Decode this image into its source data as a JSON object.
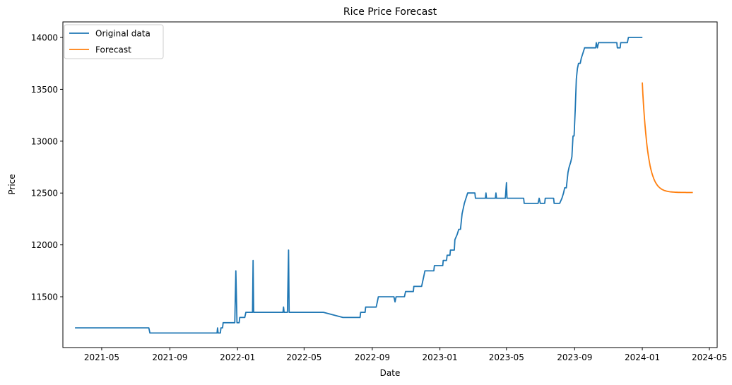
{
  "chart_data": {
    "type": "line",
    "title": "Rice Price Forecast",
    "xlabel": "Date",
    "ylabel": "Price",
    "x_axis_type": "date",
    "xlim": [
      "2021-02-20",
      "2024-05-15"
    ],
    "ylim": [
      11010,
      14150
    ],
    "x_ticks": [
      {
        "date": "2021-05-01",
        "label": "2021-05"
      },
      {
        "date": "2021-09-01",
        "label": "2021-09"
      },
      {
        "date": "2022-01-01",
        "label": "2022-01"
      },
      {
        "date": "2022-05-01",
        "label": "2022-05"
      },
      {
        "date": "2022-09-01",
        "label": "2022-09"
      },
      {
        "date": "2023-01-01",
        "label": "2023-01"
      },
      {
        "date": "2023-05-01",
        "label": "2023-05"
      },
      {
        "date": "2023-09-01",
        "label": "2023-09"
      },
      {
        "date": "2024-01-01",
        "label": "2024-01"
      },
      {
        "date": "2024-05-01",
        "label": "2024-05"
      }
    ],
    "y_ticks": [
      11500,
      12000,
      12500,
      13000,
      13500,
      14000
    ],
    "grid": false,
    "legend_position": "top-left",
    "series": [
      {
        "name": "Original data",
        "color": "#1f77b4",
        "points": [
          [
            "2021-03-15",
            11200
          ],
          [
            "2021-07-25",
            11200
          ],
          [
            "2021-07-27",
            11150
          ],
          [
            "2021-11-25",
            11150
          ],
          [
            "2021-11-26",
            11200
          ],
          [
            "2021-11-27",
            11150
          ],
          [
            "2021-12-01",
            11150
          ],
          [
            "2021-12-02",
            11200
          ],
          [
            "2021-12-05",
            11200
          ],
          [
            "2021-12-06",
            11250
          ],
          [
            "2021-12-27",
            11250
          ],
          [
            "2021-12-29",
            11750
          ],
          [
            "2021-12-31",
            11250
          ],
          [
            "2022-01-04",
            11250
          ],
          [
            "2022-01-05",
            11300
          ],
          [
            "2022-01-14",
            11300
          ],
          [
            "2022-01-16",
            11350
          ],
          [
            "2022-01-28",
            11350
          ],
          [
            "2022-01-29",
            11850
          ],
          [
            "2022-01-30",
            11350
          ],
          [
            "2022-03-24",
            11350
          ],
          [
            "2022-03-25",
            11400
          ],
          [
            "2022-03-26",
            11350
          ],
          [
            "2022-04-01",
            11350
          ],
          [
            "2022-04-03",
            11950
          ],
          [
            "2022-04-04",
            11350
          ],
          [
            "2022-06-05",
            11350
          ],
          [
            "2022-07-10",
            11300
          ],
          [
            "2022-08-10",
            11300
          ],
          [
            "2022-08-11",
            11350
          ],
          [
            "2022-08-19",
            11350
          ],
          [
            "2022-08-20",
            11400
          ],
          [
            "2022-09-08",
            11400
          ],
          [
            "2022-09-10",
            11450
          ],
          [
            "2022-09-12",
            11500
          ],
          [
            "2022-10-10",
            11500
          ],
          [
            "2022-10-12",
            11450
          ],
          [
            "2022-10-14",
            11500
          ],
          [
            "2022-10-29",
            11500
          ],
          [
            "2022-10-31",
            11550
          ],
          [
            "2022-11-14",
            11550
          ],
          [
            "2022-11-15",
            11600
          ],
          [
            "2022-11-29",
            11600
          ],
          [
            "2022-12-01",
            11650
          ],
          [
            "2022-12-03",
            11700
          ],
          [
            "2022-12-05",
            11750
          ],
          [
            "2022-12-21",
            11750
          ],
          [
            "2022-12-22",
            11800
          ],
          [
            "2023-01-06",
            11800
          ],
          [
            "2023-01-07",
            11850
          ],
          [
            "2023-01-13",
            11850
          ],
          [
            "2023-01-14",
            11900
          ],
          [
            "2023-01-19",
            11900
          ],
          [
            "2023-01-20",
            11950
          ],
          [
            "2023-01-27",
            11950
          ],
          [
            "2023-01-28",
            12050
          ],
          [
            "2023-02-01",
            12100
          ],
          [
            "2023-02-04",
            12150
          ],
          [
            "2023-02-07",
            12150
          ],
          [
            "2023-02-10",
            12300
          ],
          [
            "2023-02-12",
            12350
          ],
          [
            "2023-02-14",
            12400
          ],
          [
            "2023-02-17",
            12450
          ],
          [
            "2023-02-20",
            12500
          ],
          [
            "2023-03-05",
            12500
          ],
          [
            "2023-03-06",
            12450
          ],
          [
            "2023-03-24",
            12450
          ],
          [
            "2023-03-25",
            12500
          ],
          [
            "2023-03-26",
            12450
          ],
          [
            "2023-04-11",
            12450
          ],
          [
            "2023-04-12",
            12500
          ],
          [
            "2023-04-13",
            12450
          ],
          [
            "2023-04-29",
            12450
          ],
          [
            "2023-05-01",
            12600
          ],
          [
            "2023-05-02",
            12450
          ],
          [
            "2023-06-01",
            12450
          ],
          [
            "2023-06-02",
            12400
          ],
          [
            "2023-06-27",
            12400
          ],
          [
            "2023-06-29",
            12450
          ],
          [
            "2023-07-01",
            12400
          ],
          [
            "2023-07-09",
            12400
          ],
          [
            "2023-07-10",
            12450
          ],
          [
            "2023-07-25",
            12450
          ],
          [
            "2023-07-26",
            12400
          ],
          [
            "2023-08-05",
            12400
          ],
          [
            "2023-08-09",
            12450
          ],
          [
            "2023-08-12",
            12500
          ],
          [
            "2023-08-14",
            12550
          ],
          [
            "2023-08-17",
            12550
          ],
          [
            "2023-08-20",
            12700
          ],
          [
            "2023-08-22",
            12750
          ],
          [
            "2023-08-25",
            12800
          ],
          [
            "2023-08-27",
            12850
          ],
          [
            "2023-08-29",
            13050
          ],
          [
            "2023-08-31",
            13050
          ],
          [
            "2023-09-02",
            13300
          ],
          [
            "2023-09-04",
            13600
          ],
          [
            "2023-09-06",
            13700
          ],
          [
            "2023-09-08",
            13750
          ],
          [
            "2023-09-11",
            13750
          ],
          [
            "2023-09-13",
            13800
          ],
          [
            "2023-09-16",
            13850
          ],
          [
            "2023-09-19",
            13900
          ],
          [
            "2023-10-09",
            13900
          ],
          [
            "2023-10-10",
            13950
          ],
          [
            "2023-10-12",
            13900
          ],
          [
            "2023-10-14",
            13950
          ],
          [
            "2023-11-16",
            13950
          ],
          [
            "2023-11-17",
            13900
          ],
          [
            "2023-11-22",
            13900
          ],
          [
            "2023-11-23",
            13950
          ],
          [
            "2023-12-05",
            13950
          ],
          [
            "2023-12-07",
            14000
          ],
          [
            "2023-12-31",
            14000
          ]
        ]
      },
      {
        "name": "Forecast",
        "color": "#ff7f0e",
        "model": {
          "start": "2024-01-01",
          "end": "2024-03-31",
          "initial_value": 13560,
          "asymptote": 12505,
          "decay_days": 10
        }
      }
    ]
  }
}
